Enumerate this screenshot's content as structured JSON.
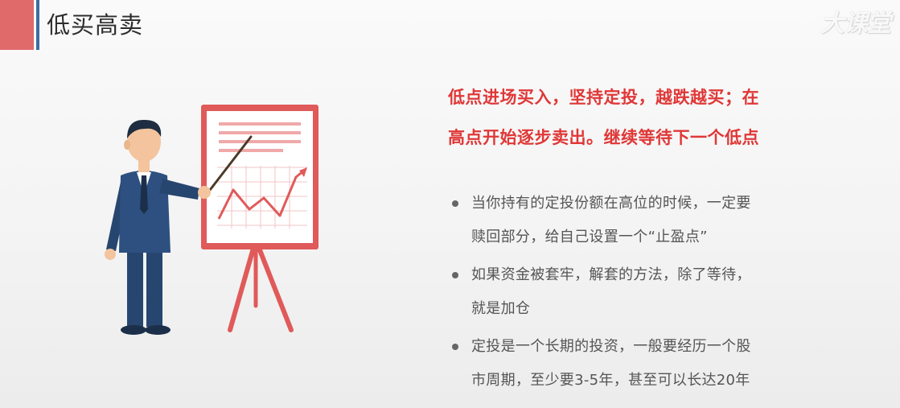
{
  "header": {
    "title": "低买高卖"
  },
  "watermark": {
    "text": "大课堂"
  },
  "headline": {
    "lines": [
      "低点进场买入，坚持定投，越跌越买；在",
      "高点开始逐步卖出。继续等待下一个低点"
    ]
  },
  "bullets": [
    {
      "lines": [
        "当你持有的定投份额在高位的时候，一定要",
        "赎回部分，给自己设置一个“止盈点”"
      ]
    },
    {
      "lines": [
        "如果资金被套牢，解套的方法，除了等待，",
        "就是加仓"
      ]
    },
    {
      "lines": [
        "定投是一个长期的投资，一般要经历一个股",
        "市周期，至少要3-5年，甚至可以长达20年"
      ]
    }
  ],
  "colors": {
    "accent_red": "#e03737",
    "header_block": "#e06a6a",
    "header_divider": "#3f6ca2",
    "suit_navy": "#27466f",
    "board_red": "#e05a5a"
  },
  "icons": {
    "illustration": "presenter-with-chart-board-icon"
  }
}
